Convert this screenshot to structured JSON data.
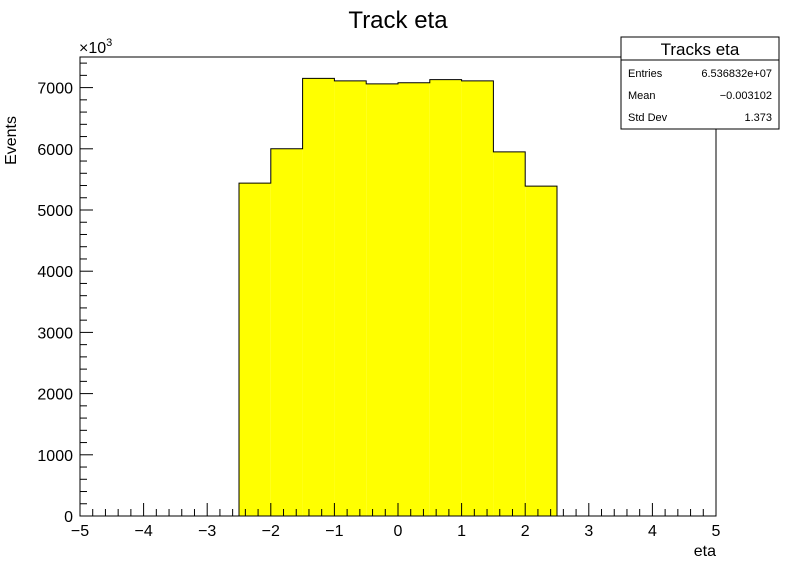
{
  "chart_data": {
    "type": "bar",
    "title": "Track eta",
    "xlabel": "eta",
    "ylabel": "Events",
    "y_multiplier": "×10",
    "y_multiplier_exp": "3",
    "xlim": [
      -5,
      5
    ],
    "ylim": [
      0,
      7500
    ],
    "x_ticks": [
      -5,
      -4,
      -3,
      -2,
      -1,
      0,
      1,
      2,
      3,
      4,
      5
    ],
    "x_tick_labels": [
      "−5",
      "−4",
      "−3",
      "−2",
      "−1",
      "0",
      "1",
      "2",
      "3",
      "4",
      "5"
    ],
    "y_ticks": [
      0,
      1000,
      2000,
      3000,
      4000,
      5000,
      6000,
      7000
    ],
    "y_tick_labels": [
      "0",
      "1000",
      "2000",
      "3000",
      "4000",
      "5000",
      "6000",
      "7000"
    ],
    "bin_edges": [
      -2.5,
      -2.0,
      -1.5,
      -1.0,
      -0.5,
      0.0,
      0.5,
      1.0,
      1.5,
      2.0,
      2.5
    ],
    "values": [
      5440,
      6000,
      7150,
      7110,
      7060,
      7080,
      7130,
      7110,
      5950,
      5390
    ],
    "fill_color": "#ffff00",
    "line_color": "#000000",
    "stats": {
      "title": "Tracks eta",
      "rows": [
        {
          "label": "Entries",
          "value": "6.536832e+07"
        },
        {
          "label": "Mean",
          "value": "−0.003102"
        },
        {
          "label": "Std Dev",
          "value": "1.373"
        }
      ]
    }
  }
}
